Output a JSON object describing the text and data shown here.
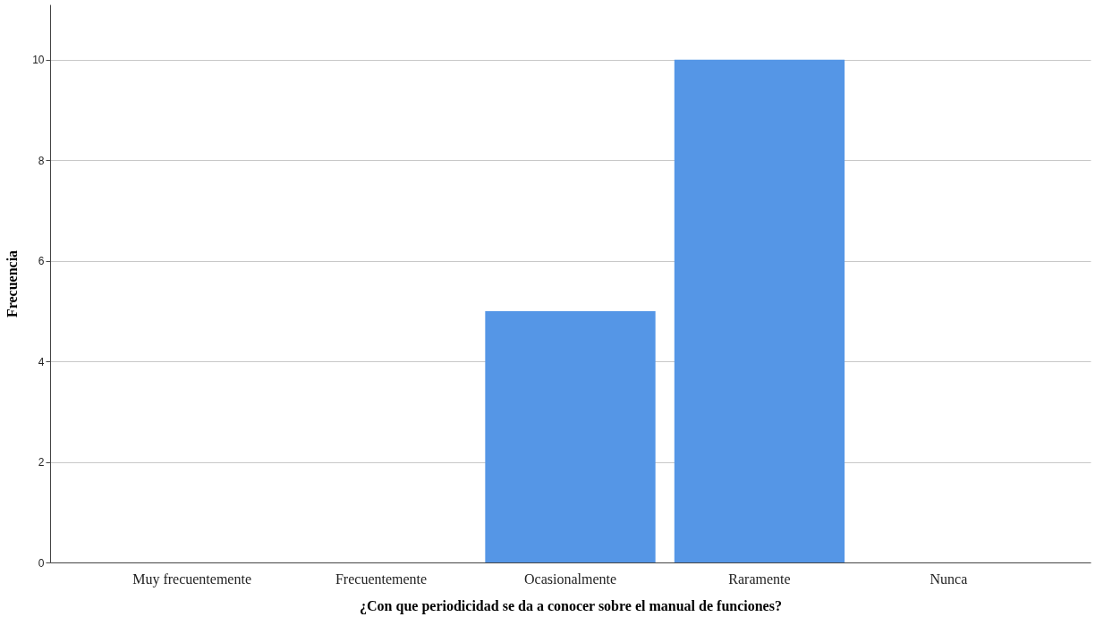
{
  "chart_data": {
    "type": "bar",
    "xlabel": "¿Con que periodicidad se da a conocer sobre el manual de funciones?",
    "ylabel": "Frecuencia",
    "categories": [
      "Muy frecuentemente",
      "Frecuentemente",
      "Ocasionalmente",
      "Raramente",
      "Nunca"
    ],
    "values": [
      0,
      0,
      5,
      10,
      0
    ],
    "color": "#5596e6",
    "ylim": [
      0,
      11.1
    ],
    "yticks": [
      0,
      2,
      4,
      6,
      8,
      10
    ],
    "grid": "y"
  }
}
